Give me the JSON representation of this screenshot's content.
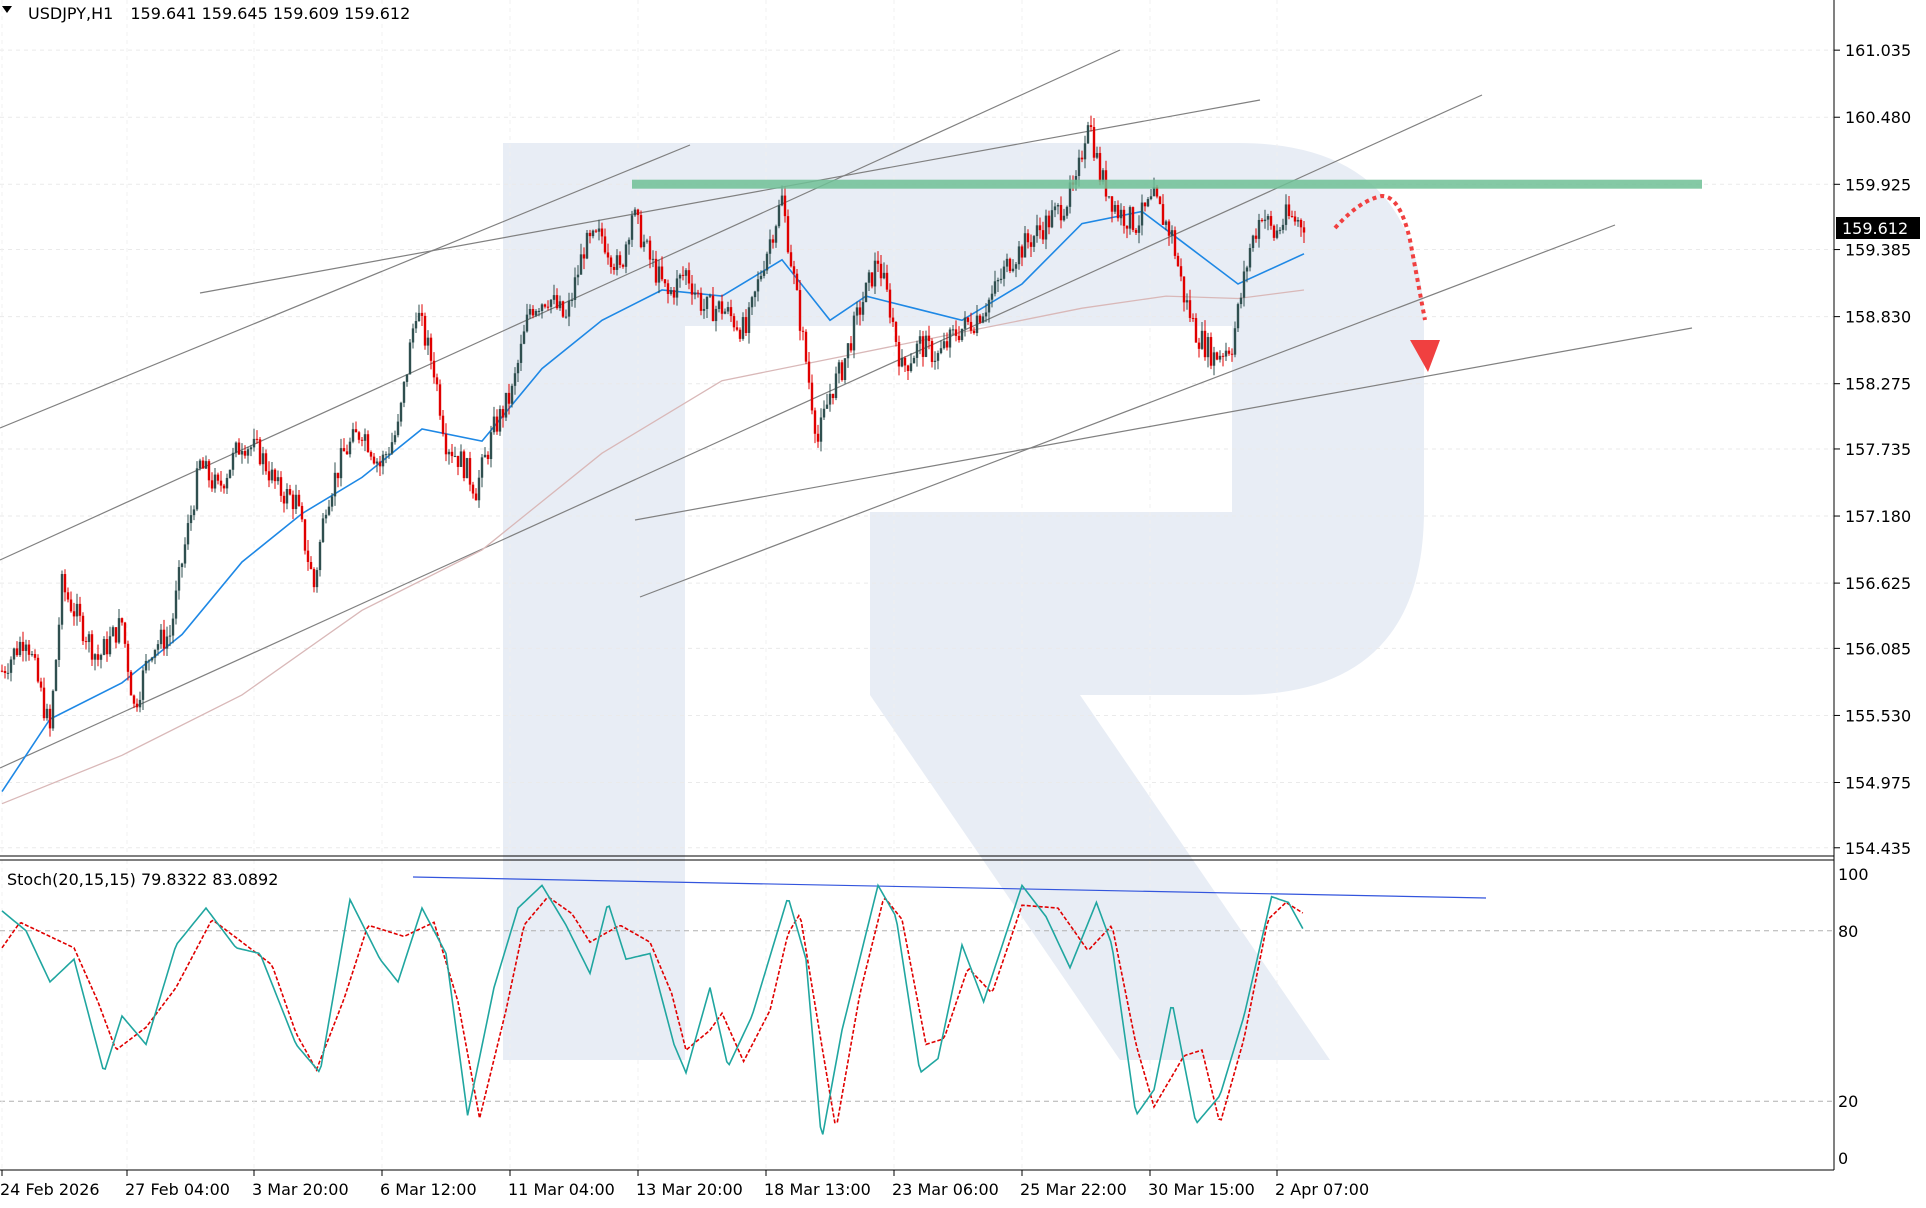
{
  "header": {
    "symbol": "USDJPY,H1",
    "ohlc": "159.641 159.645 159.609 159.612"
  },
  "indicator": {
    "label": "Stoch(20,15,15) 79.8322 83.0892",
    "levels": [
      "100",
      "80",
      "20",
      "0"
    ]
  },
  "colors": {
    "bull": "#2f4f4f",
    "bear": "#e00000",
    "ma_fast": "#1e88e5",
    "ma_slow": "#d9b8b8",
    "resistance": "#6fbf95",
    "arrow": "#f04040",
    "stoch_main": "#20a6a0",
    "stoch_signal": "#e00000",
    "trendline": "#808080",
    "watermark": "#e8edf5"
  },
  "chart_data": {
    "type": "candlestick",
    "timeframe": "H1",
    "symbol": "USDJPY",
    "price_ticks": [
      "161.035",
      "160.480",
      "159.925",
      "159.385",
      "158.830",
      "158.275",
      "157.735",
      "157.180",
      "156.625",
      "156.085",
      "155.530",
      "154.975",
      "154.435"
    ],
    "time_ticks": [
      "24 Feb 2026",
      "27 Feb 04:00",
      "3 Mar 20:00",
      "6 Mar 12:00",
      "11 Mar 04:00",
      "13 Mar 20:00",
      "18 Mar 13:00",
      "23 Mar 06:00",
      "25 Mar 22:00",
      "30 Mar 15:00",
      "2 Apr 07:00"
    ],
    "current_price": "159.612",
    "ylim": [
      154.4,
      161.45
    ],
    "resistance_level": 159.93,
    "price_path": [
      [
        0,
        155.9
      ],
      [
        20,
        156.2
      ],
      [
        40,
        155.4
      ],
      [
        50,
        156.6
      ],
      [
        60,
        156.4
      ],
      [
        80,
        156.0
      ],
      [
        100,
        156.3
      ],
      [
        110,
        155.6
      ],
      [
        125,
        156.1
      ],
      [
        140,
        156.2
      ],
      [
        150,
        156.8
      ],
      [
        165,
        157.6
      ],
      [
        180,
        157.4
      ],
      [
        200,
        157.8
      ],
      [
        215,
        157.7
      ],
      [
        230,
        157.4
      ],
      [
        245,
        157.3
      ],
      [
        260,
        156.6
      ],
      [
        270,
        157.3
      ],
      [
        285,
        157.7
      ],
      [
        300,
        157.9
      ],
      [
        315,
        157.6
      ],
      [
        330,
        157.9
      ],
      [
        345,
        158.9
      ],
      [
        360,
        158.4
      ],
      [
        370,
        157.8
      ],
      [
        385,
        157.6
      ],
      [
        395,
        157.4
      ],
      [
        410,
        157.9
      ],
      [
        425,
        158.2
      ],
      [
        440,
        158.9
      ],
      [
        455,
        159.0
      ],
      [
        470,
        158.8
      ],
      [
        485,
        159.4
      ],
      [
        500,
        159.5
      ],
      [
        515,
        159.2
      ],
      [
        525,
        159.7
      ],
      [
        540,
        159.3
      ],
      [
        555,
        159.0
      ],
      [
        570,
        159.2
      ],
      [
        585,
        158.9
      ],
      [
        600,
        158.9
      ],
      [
        620,
        158.7
      ],
      [
        635,
        159.3
      ],
      [
        650,
        159.8
      ],
      [
        665,
        158.8
      ],
      [
        680,
        157.8
      ],
      [
        690,
        158.2
      ],
      [
        700,
        158.4
      ],
      [
        715,
        158.9
      ],
      [
        730,
        159.3
      ],
      [
        740,
        158.9
      ],
      [
        750,
        158.4
      ],
      [
        765,
        158.6
      ],
      [
        780,
        158.5
      ],
      [
        795,
        158.7
      ],
      [
        810,
        158.8
      ],
      [
        825,
        159.0
      ],
      [
        840,
        159.3
      ],
      [
        860,
        159.5
      ],
      [
        880,
        159.7
      ],
      [
        895,
        159.9
      ],
      [
        905,
        160.5
      ],
      [
        915,
        160.0
      ],
      [
        930,
        159.7
      ],
      [
        945,
        159.6
      ],
      [
        960,
        159.8
      ],
      [
        975,
        159.5
      ],
      [
        985,
        159.0
      ],
      [
        995,
        158.7
      ],
      [
        1010,
        158.5
      ],
      [
        1025,
        158.6
      ],
      [
        1040,
        159.4
      ],
      [
        1050,
        159.7
      ],
      [
        1060,
        159.5
      ],
      [
        1070,
        159.65
      ],
      [
        1085,
        159.61
      ]
    ],
    "ma_fast_path": [
      [
        0,
        154.9
      ],
      [
        40,
        155.5
      ],
      [
        100,
        155.8
      ],
      [
        150,
        156.2
      ],
      [
        200,
        156.8
      ],
      [
        250,
        157.2
      ],
      [
        300,
        157.5
      ],
      [
        350,
        157.9
      ],
      [
        400,
        157.8
      ],
      [
        450,
        158.4
      ],
      [
        500,
        158.8
      ],
      [
        550,
        159.05
      ],
      [
        600,
        159.0
      ],
      [
        650,
        159.3
      ],
      [
        690,
        158.8
      ],
      [
        720,
        159.0
      ],
      [
        760,
        158.9
      ],
      [
        800,
        158.8
      ],
      [
        850,
        159.1
      ],
      [
        900,
        159.6
      ],
      [
        950,
        159.7
      ],
      [
        990,
        159.4
      ],
      [
        1030,
        159.1
      ],
      [
        1085,
        159.35
      ]
    ],
    "ma_slow_path": [
      [
        0,
        154.8
      ],
      [
        100,
        155.2
      ],
      [
        200,
        155.7
      ],
      [
        300,
        156.4
      ],
      [
        400,
        156.9
      ],
      [
        500,
        157.7
      ],
      [
        600,
        158.3
      ],
      [
        700,
        158.5
      ],
      [
        800,
        158.7
      ],
      [
        900,
        158.9
      ],
      [
        970,
        159.0
      ],
      [
        1030,
        158.98
      ],
      [
        1085,
        159.05
      ]
    ],
    "stoch_main_path": [
      [
        0,
        87
      ],
      [
        20,
        80
      ],
      [
        40,
        62
      ],
      [
        60,
        70
      ],
      [
        85,
        30
      ],
      [
        100,
        50
      ],
      [
        120,
        40
      ],
      [
        145,
        75
      ],
      [
        170,
        88
      ],
      [
        195,
        74
      ],
      [
        215,
        72
      ],
      [
        245,
        40
      ],
      [
        265,
        30
      ],
      [
        290,
        91
      ],
      [
        315,
        70
      ],
      [
        330,
        62
      ],
      [
        350,
        88
      ],
      [
        370,
        72
      ],
      [
        388,
        15
      ],
      [
        410,
        60
      ],
      [
        430,
        88
      ],
      [
        450,
        96
      ],
      [
        470,
        82
      ],
      [
        490,
        65
      ],
      [
        505,
        90
      ],
      [
        520,
        70
      ],
      [
        540,
        72
      ],
      [
        560,
        40
      ],
      [
        570,
        30
      ],
      [
        590,
        60
      ],
      [
        605,
        32
      ],
      [
        625,
        50
      ],
      [
        655,
        92
      ],
      [
        670,
        70
      ],
      [
        683,
        6
      ],
      [
        700,
        45
      ],
      [
        730,
        96
      ],
      [
        745,
        85
      ],
      [
        765,
        30
      ],
      [
        780,
        35
      ],
      [
        800,
        75
      ],
      [
        818,
        55
      ],
      [
        850,
        96
      ],
      [
        870,
        85
      ],
      [
        890,
        67
      ],
      [
        912,
        90
      ],
      [
        925,
        75
      ],
      [
        945,
        15
      ],
      [
        960,
        24
      ],
      [
        975,
        55
      ],
      [
        995,
        12
      ],
      [
        1015,
        22
      ],
      [
        1035,
        50
      ],
      [
        1058,
        92
      ],
      [
        1072,
        90
      ],
      [
        1085,
        80
      ]
    ],
    "stoch_signal_path": [
      [
        0,
        74
      ],
      [
        15,
        83
      ],
      [
        40,
        78
      ],
      [
        60,
        74
      ],
      [
        80,
        55
      ],
      [
        95,
        38
      ],
      [
        120,
        46
      ],
      [
        145,
        60
      ],
      [
        175,
        84
      ],
      [
        200,
        76
      ],
      [
        225,
        68
      ],
      [
        245,
        44
      ],
      [
        262,
        31
      ],
      [
        285,
        56
      ],
      [
        305,
        82
      ],
      [
        335,
        78
      ],
      [
        360,
        83
      ],
      [
        380,
        55
      ],
      [
        398,
        14
      ],
      [
        420,
        52
      ],
      [
        435,
        82
      ],
      [
        455,
        92
      ],
      [
        475,
        86
      ],
      [
        490,
        76
      ],
      [
        515,
        82
      ],
      [
        540,
        76
      ],
      [
        558,
        58
      ],
      [
        570,
        38
      ],
      [
        590,
        45
      ],
      [
        600,
        51
      ],
      [
        618,
        34
      ],
      [
        640,
        52
      ],
      [
        655,
        79
      ],
      [
        665,
        86
      ],
      [
        683,
        40
      ],
      [
        695,
        10
      ],
      [
        715,
        58
      ],
      [
        735,
        92
      ],
      [
        750,
        84
      ],
      [
        770,
        40
      ],
      [
        785,
        42
      ],
      [
        805,
        67
      ],
      [
        825,
        58
      ],
      [
        850,
        89
      ],
      [
        880,
        88
      ],
      [
        905,
        73
      ],
      [
        925,
        82
      ],
      [
        945,
        40
      ],
      [
        960,
        18
      ],
      [
        985,
        36
      ],
      [
        1000,
        38
      ],
      [
        1015,
        12
      ],
      [
        1035,
        42
      ],
      [
        1055,
        84
      ],
      [
        1070,
        90
      ],
      [
        1085,
        86
      ]
    ]
  }
}
